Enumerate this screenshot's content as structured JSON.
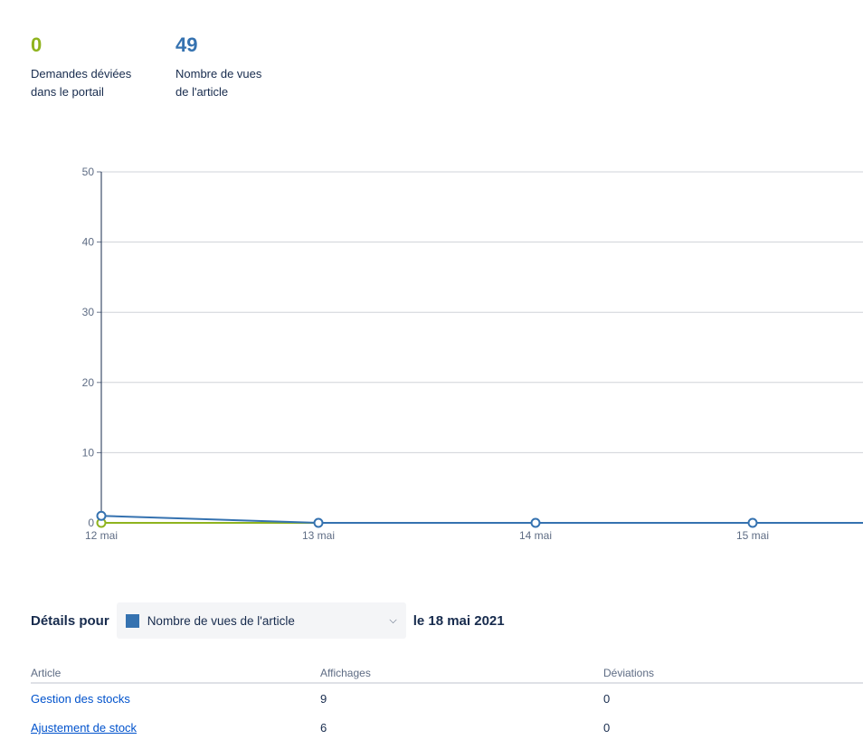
{
  "stats": [
    {
      "value": "0",
      "label_line1": "Demandes déviées",
      "label_line2": "dans le portail",
      "color": "#8fb31e"
    },
    {
      "value": "49",
      "label_line1": "Nombre de vues",
      "label_line2": "de l'article",
      "color": "#3572b0"
    }
  ],
  "chart_data": {
    "type": "line",
    "categories": [
      "12 mai",
      "13 mai",
      "14 mai",
      "15 mai"
    ],
    "ylim": [
      0,
      50
    ],
    "yticks": [
      "0",
      "10",
      "20",
      "30",
      "40",
      "50"
    ],
    "grid": true,
    "series": [
      {
        "name": "Nombre de vues de l'article",
        "color": "#3572b0",
        "values": [
          1,
          0,
          0,
          0
        ],
        "extends_right": 0
      },
      {
        "name": "Demandes déviées dans le portail",
        "color": "#8fb31e",
        "values": [
          0,
          0,
          0,
          0
        ],
        "extends_right": 0
      }
    ]
  },
  "details": {
    "label": "Détails pour",
    "selected": "Nombre de vues de l'article",
    "selected_color": "#3572b0",
    "date": "le 18 mai 2021"
  },
  "table": {
    "headers": [
      "Article",
      "Affichages",
      "Déviations"
    ],
    "rows": [
      {
        "article": "Gestion des stocks",
        "views": "9",
        "deviations": "0"
      },
      {
        "article": "Ajustement de stock",
        "views": "6",
        "deviations": "0"
      }
    ]
  }
}
